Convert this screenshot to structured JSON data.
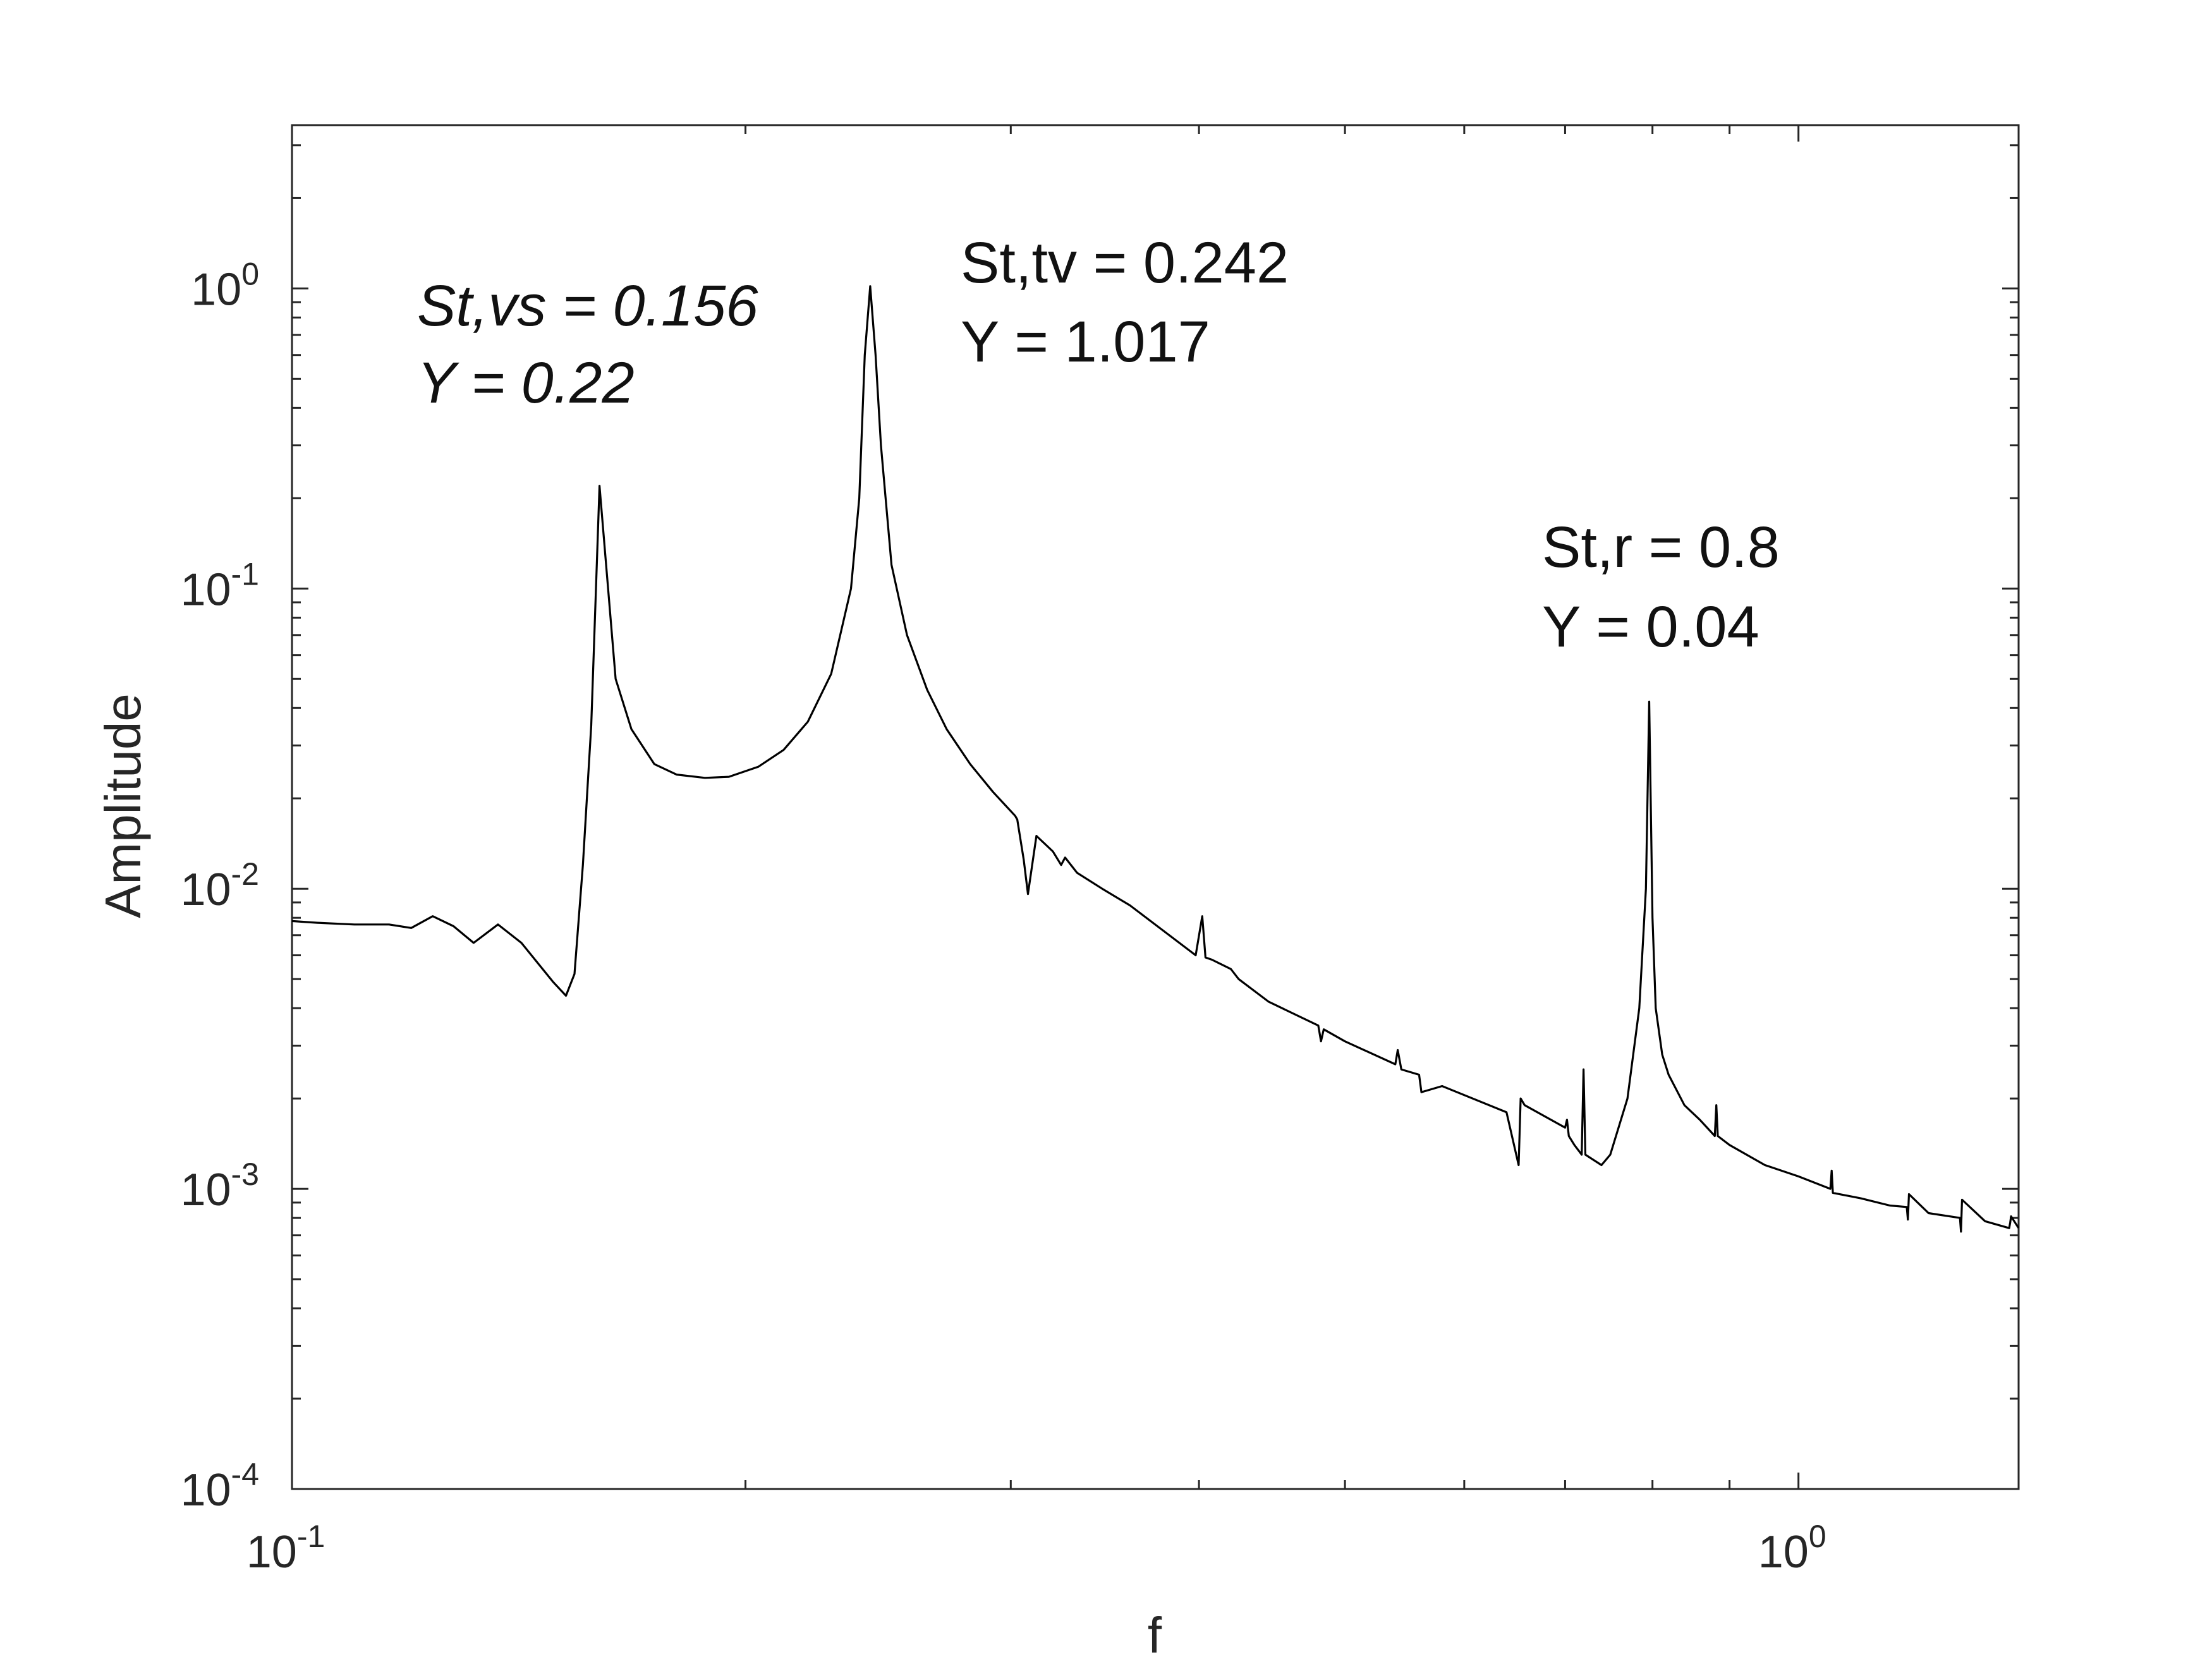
{
  "chart_data": {
    "type": "line",
    "xscale": "log",
    "yscale": "log",
    "xlabel": "f",
    "ylabel": "Amplitude",
    "xlim": [
      0.1,
      1.4
    ],
    "ylim": [
      0.0001,
      3.5
    ],
    "grid": false,
    "x_ticks": [
      {
        "base": "10",
        "exp": "-1"
      },
      {
        "base": "10",
        "exp": "0"
      }
    ],
    "y_ticks": [
      {
        "base": "10",
        "exp": "0"
      },
      {
        "base": "10",
        "exp": "-1"
      },
      {
        "base": "10",
        "exp": "-2"
      },
      {
        "base": "10",
        "exp": "-3"
      },
      {
        "base": "10",
        "exp": "-4"
      }
    ],
    "annotations": [
      {
        "line1": "St,vs = 0.156",
        "line2": "Y = 0.22",
        "italic": true
      },
      {
        "line1": "St,tv = 0.242",
        "line2": "Y = 1.017",
        "italic": false
      },
      {
        "line1": "St,r = 0.8",
        "line2": "Y = 0.04",
        "italic": false
      }
    ],
    "series": [
      {
        "color": "#000000",
        "x": [
          0.1,
          0.104,
          0.11,
          0.116,
          0.12,
          0.124,
          0.128,
          0.132,
          0.137,
          0.142,
          0.145,
          0.149,
          0.152,
          0.154,
          0.156,
          0.158,
          0.16,
          0.164,
          0.168,
          0.174,
          0.18,
          0.188,
          0.195,
          0.204,
          0.212,
          0.22,
          0.228,
          0.235,
          0.238,
          0.24,
          0.242,
          0.244,
          0.246,
          0.25,
          0.256,
          0.264,
          0.272,
          0.282,
          0.292,
          0.302,
          0.303,
          0.306,
          0.308,
          0.312,
          0.32,
          0.324,
          0.326,
          0.332,
          0.345,
          0.36,
          0.398,
          0.402,
          0.404,
          0.408,
          0.42,
          0.425,
          0.445,
          0.48,
          0.482,
          0.484,
          0.5,
          0.54,
          0.542,
          0.545,
          0.56,
          0.562,
          0.58,
          0.64,
          0.652,
          0.654,
          0.658,
          0.7,
          0.702,
          0.704,
          0.71,
          0.718,
          0.72,
          0.722,
          0.74,
          0.75,
          0.77,
          0.784,
          0.792,
          0.796,
          0.8,
          0.804,
          0.812,
          0.82,
          0.84,
          0.86,
          0.88,
          0.882,
          0.884,
          0.9,
          0.95,
          1.0,
          1.05,
          1.052,
          1.054,
          1.1,
          1.15,
          1.18,
          1.182,
          1.184,
          1.22,
          1.28,
          1.282,
          1.284,
          1.33,
          1.38,
          1.382,
          1.384,
          1.4
        ],
        "y": [
          0.0078,
          0.0077,
          0.0076,
          0.0076,
          0.0074,
          0.0081,
          0.0075,
          0.0066,
          0.0076,
          0.0066,
          0.0058,
          0.0049,
          0.0044,
          0.0052,
          0.012,
          0.035,
          0.22,
          0.05,
          0.034,
          0.026,
          0.024,
          0.0234,
          0.0236,
          0.0255,
          0.029,
          0.036,
          0.052,
          0.1,
          0.2,
          0.6,
          1.017,
          0.6,
          0.3,
          0.12,
          0.07,
          0.046,
          0.034,
          0.026,
          0.021,
          0.0175,
          0.017,
          0.0125,
          0.0096,
          0.015,
          0.0133,
          0.012,
          0.0127,
          0.0113,
          0.01,
          0.0088,
          0.006,
          0.0081,
          0.0059,
          0.0058,
          0.0054,
          0.005,
          0.0042,
          0.0035,
          0.0031,
          0.0034,
          0.0031,
          0.0026,
          0.0029,
          0.0025,
          0.0024,
          0.0021,
          0.0022,
          0.0018,
          0.0012,
          0.002,
          0.0019,
          0.0016,
          0.0017,
          0.0015,
          0.0014,
          0.0013,
          0.0025,
          0.0013,
          0.0012,
          0.0013,
          0.002,
          0.004,
          0.01,
          0.042,
          0.008,
          0.004,
          0.0028,
          0.0024,
          0.0019,
          0.0017,
          0.0015,
          0.0019,
          0.0015,
          0.0014,
          0.0012,
          0.0011,
          0.001,
          0.00115,
          0.00097,
          0.00093,
          0.00088,
          0.00087,
          0.00079,
          0.00096,
          0.00083,
          0.0008,
          0.00072,
          0.00092,
          0.00078,
          0.00074,
          0.00077,
          0.00081,
          0.00074
        ]
      }
    ]
  }
}
